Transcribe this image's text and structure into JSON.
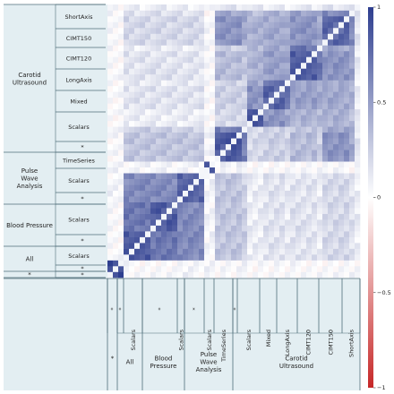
{
  "chart_data": {
    "type": "heatmap",
    "title": "",
    "value_range": [
      -1,
      1
    ],
    "colormap": {
      "negative": "#c62828",
      "zero": "#ffffff",
      "positive": "#2e3e8f"
    },
    "colorbar": {
      "ticks": [
        {
          "value": 1,
          "label": "1"
        },
        {
          "value": 0.5,
          "label": "0.5"
        },
        {
          "value": 0,
          "label": "0"
        },
        {
          "value": -0.5,
          "label": "−0.5"
        },
        {
          "value": -1,
          "label": "−1"
        }
      ]
    },
    "row_groups": [
      {
        "label_lines": [
          "Carotid",
          "Ultrasound"
        ]
      },
      {
        "label_lines": [
          "Pulse",
          "Wave",
          "Analysis"
        ]
      },
      {
        "label_lines": [
          "Blood Pressure"
        ]
      },
      {
        "label_lines": [
          "All"
        ]
      },
      {
        "label_lines": [
          "*"
        ]
      }
    ],
    "row_subs": [
      {
        "label": "ShortAxis"
      },
      {
        "label": "CIMT150"
      },
      {
        "label": "CIMT120"
      },
      {
        "label": "LongAxis"
      },
      {
        "label": "Mixed"
      },
      {
        "label": "Scalars"
      },
      {
        "label": "*"
      },
      {
        "label": "TimeSeries"
      },
      {
        "label": "Scalars"
      },
      {
        "label": "*"
      },
      {
        "label": "Scalars"
      },
      {
        "label": "*"
      },
      {
        "label": "Scalars"
      },
      {
        "label": "*"
      },
      {
        "label": "*"
      }
    ],
    "col_groups": [
      {
        "label_lines": [
          "*"
        ]
      },
      {
        "label_lines": [
          "All"
        ]
      },
      {
        "label_lines": [
          "Blood",
          "Pressure"
        ]
      },
      {
        "label_lines": [
          "Pulse",
          "Wave",
          "Analysis"
        ]
      },
      {
        "label_lines": [
          "Carotid",
          "Ultrasound"
        ]
      }
    ],
    "col_subs": [
      {
        "label": "*"
      },
      {
        "label": "*"
      },
      {
        "label": "Scalars"
      },
      {
        "label": "*"
      },
      {
        "label": "Scalars"
      },
      {
        "label": "*"
      },
      {
        "label": "Scalars"
      },
      {
        "label": "TimeSeries"
      },
      {
        "label": "*"
      },
      {
        "label": "Scalars"
      },
      {
        "label": "Mixed"
      },
      {
        "label": "LongAxis"
      },
      {
        "label": "CIMT120"
      },
      {
        "label": "CIMT150"
      },
      {
        "label": "ShortAxis"
      }
    ],
    "blocks": [
      {
        "name": "ShortAxis",
        "group": "Carotid Ultrasound",
        "n": 3
      },
      {
        "name": "CIMT150",
        "group": "Carotid Ultrasound",
        "n": 5
      },
      {
        "name": "CIMT120",
        "group": "Carotid Ultrasound",
        "n": 5
      },
      {
        "name": "LongAxis",
        "group": "Carotid Ultrasound",
        "n": 5
      },
      {
        "name": "Mixed",
        "group": "Carotid Ultrasound",
        "n": 2
      },
      {
        "name": "Scalars",
        "group": "Carotid Ultrasound",
        "n": 5
      },
      {
        "name": "*",
        "group": "Carotid Ultrasound",
        "n": 1
      },
      {
        "name": "TimeSeries",
        "group": "Pulse Wave Analysis",
        "n": 3
      },
      {
        "name": "Scalars",
        "group": "Pulse Wave Analysis",
        "n": 4
      },
      {
        "name": "*",
        "group": "Pulse Wave Analysis",
        "n": 1
      },
      {
        "name": "Scalars",
        "group": "Blood Pressure",
        "n": 5
      },
      {
        "name": "*",
        "group": "Blood Pressure",
        "n": 1
      },
      {
        "name": "Scalars",
        "group": "All",
        "n": 5
      },
      {
        "name": "*",
        "group": "All",
        "n": 1
      },
      {
        "name": "*",
        "group": "*",
        "n": 1
      }
    ],
    "block_correlation": [
      [
        0.95,
        0.02,
        0.02,
        0.05,
        0.05,
        0.02,
        0.05,
        0.02,
        0.02,
        0.02,
        0.02,
        0.02,
        0.02,
        0.02,
        0.02
      ],
      [
        0.02,
        0.85,
        0.7,
        0.6,
        0.05,
        0.3,
        0.25,
        0.1,
        0.15,
        0.1,
        0.15,
        0.1,
        0.2,
        0.15,
        0.1
      ],
      [
        0.02,
        0.7,
        0.85,
        0.6,
        0.05,
        0.3,
        0.25,
        0.1,
        0.15,
        0.1,
        0.15,
        0.1,
        0.2,
        0.15,
        0.1
      ],
      [
        0.05,
        0.6,
        0.6,
        0.8,
        0.05,
        0.3,
        0.25,
        0.1,
        0.15,
        0.1,
        0.15,
        0.1,
        0.2,
        0.15,
        0.1
      ],
      [
        0.05,
        0.05,
        0.05,
        0.05,
        0.9,
        0.05,
        0.05,
        0.02,
        0.02,
        0.02,
        0.02,
        0.02,
        0.02,
        0.02,
        0.02
      ],
      [
        0.02,
        0.3,
        0.3,
        0.3,
        0.05,
        0.85,
        0.65,
        0.2,
        0.25,
        0.2,
        0.35,
        0.25,
        0.55,
        0.45,
        0.15
      ],
      [
        0.05,
        0.25,
        0.25,
        0.25,
        0.05,
        0.65,
        0.9,
        0.2,
        0.25,
        0.2,
        0.3,
        0.25,
        0.45,
        0.45,
        0.15
      ],
      [
        0.02,
        0.1,
        0.1,
        0.1,
        0.02,
        0.2,
        0.2,
        0.9,
        0.55,
        0.45,
        0.4,
        0.35,
        0.4,
        0.35,
        0.1
      ],
      [
        0.02,
        0.15,
        0.15,
        0.15,
        0.02,
        0.25,
        0.25,
        0.55,
        0.8,
        0.7,
        0.5,
        0.45,
        0.45,
        0.4,
        0.1
      ],
      [
        0.02,
        0.1,
        0.1,
        0.1,
        0.02,
        0.2,
        0.2,
        0.45,
        0.7,
        0.9,
        0.45,
        0.45,
        0.4,
        0.4,
        0.1
      ],
      [
        0.02,
        0.15,
        0.15,
        0.15,
        0.02,
        0.35,
        0.3,
        0.4,
        0.5,
        0.45,
        0.85,
        0.7,
        0.55,
        0.5,
        0.1
      ],
      [
        0.02,
        0.1,
        0.1,
        0.1,
        0.02,
        0.25,
        0.25,
        0.35,
        0.45,
        0.45,
        0.7,
        0.9,
        0.45,
        0.45,
        0.1
      ],
      [
        0.02,
        0.2,
        0.2,
        0.2,
        0.02,
        0.55,
        0.45,
        0.4,
        0.45,
        0.4,
        0.55,
        0.45,
        0.8,
        0.6,
        0.15
      ],
      [
        0.02,
        0.15,
        0.15,
        0.15,
        0.02,
        0.45,
        0.45,
        0.35,
        0.4,
        0.4,
        0.5,
        0.45,
        0.6,
        0.9,
        0.15
      ],
      [
        0.02,
        0.1,
        0.1,
        0.1,
        0.02,
        0.15,
        0.15,
        0.1,
        0.1,
        0.1,
        0.1,
        0.1,
        0.15,
        0.15,
        0.95
      ]
    ]
  }
}
